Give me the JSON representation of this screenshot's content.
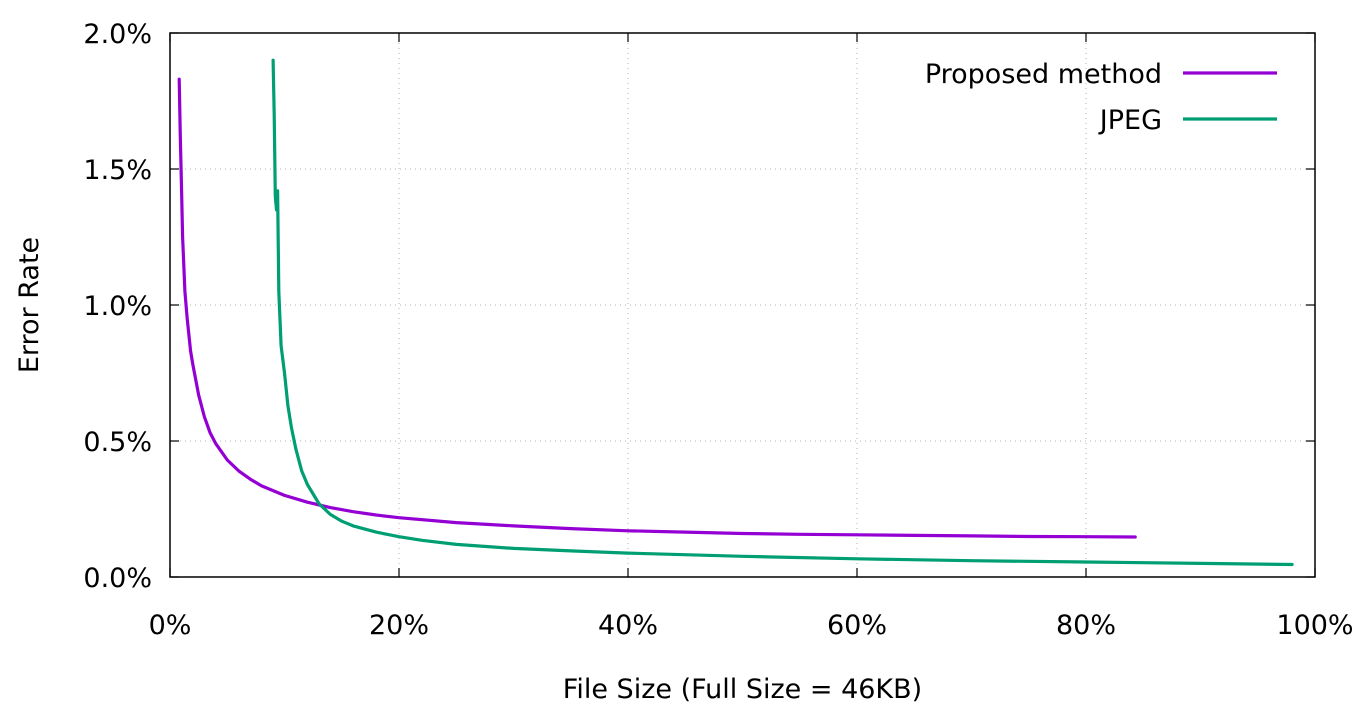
{
  "chart_data": {
    "type": "line",
    "xlabel": "File Size (Full Size = 46KB)",
    "ylabel": "Error Rate",
    "xlim": [
      0,
      100
    ],
    "ylim": [
      0,
      2.0
    ],
    "x_ticks": [
      {
        "value": 0,
        "label": "0%"
      },
      {
        "value": 20,
        "label": "20%"
      },
      {
        "value": 40,
        "label": "40%"
      },
      {
        "value": 60,
        "label": "60%"
      },
      {
        "value": 80,
        "label": "80%"
      },
      {
        "value": 100,
        "label": "100%"
      }
    ],
    "y_ticks": [
      {
        "value": 0.0,
        "label": "0.0%"
      },
      {
        "value": 0.5,
        "label": "0.5%"
      },
      {
        "value": 1.0,
        "label": "1.0%"
      },
      {
        "value": 1.5,
        "label": "1.5%"
      },
      {
        "value": 2.0,
        "label": "2.0%"
      }
    ],
    "grid": true,
    "legend_position": "top-right",
    "series": [
      {
        "name": "Proposed method",
        "color": "#9400d3",
        "x": [
          0.8,
          0.9,
          1.0,
          1.1,
          1.3,
          1.5,
          1.8,
          2.0,
          2.5,
          3.0,
          3.5,
          4.0,
          5.0,
          6.0,
          7.0,
          8.0,
          10.0,
          12.0,
          14.0,
          16.0,
          18.0,
          20.0,
          25.0,
          30.0,
          35.0,
          40.0,
          45.0,
          50.0,
          55.0,
          60.0,
          65.0,
          70.0,
          75.0,
          80.0,
          84.3
        ],
        "y": [
          1.83,
          1.62,
          1.45,
          1.25,
          1.05,
          0.95,
          0.83,
          0.78,
          0.67,
          0.59,
          0.53,
          0.49,
          0.43,
          0.39,
          0.36,
          0.335,
          0.3,
          0.275,
          0.255,
          0.24,
          0.228,
          0.218,
          0.2,
          0.188,
          0.178,
          0.17,
          0.165,
          0.16,
          0.157,
          0.155,
          0.153,
          0.151,
          0.149,
          0.148,
          0.147
        ]
      },
      {
        "name": "JPEG",
        "color": "#009e73",
        "x": [
          9.0,
          9.1,
          9.2,
          9.3,
          9.4,
          9.5,
          9.7,
          10.0,
          10.3,
          10.6,
          11.0,
          11.5,
          12.0,
          13.0,
          14.0,
          15.0,
          16.0,
          18.0,
          20.0,
          22.0,
          25.0,
          30.0,
          35.0,
          40.0,
          50.0,
          60.0,
          70.0,
          80.0,
          90.0,
          98.0
        ],
        "y": [
          1.9,
          1.7,
          1.4,
          1.35,
          1.42,
          1.05,
          0.85,
          0.75,
          0.63,
          0.55,
          0.47,
          0.39,
          0.34,
          0.27,
          0.23,
          0.205,
          0.188,
          0.165,
          0.148,
          0.135,
          0.12,
          0.105,
          0.096,
          0.088,
          0.076,
          0.067,
          0.06,
          0.055,
          0.05,
          0.046
        ]
      }
    ]
  }
}
